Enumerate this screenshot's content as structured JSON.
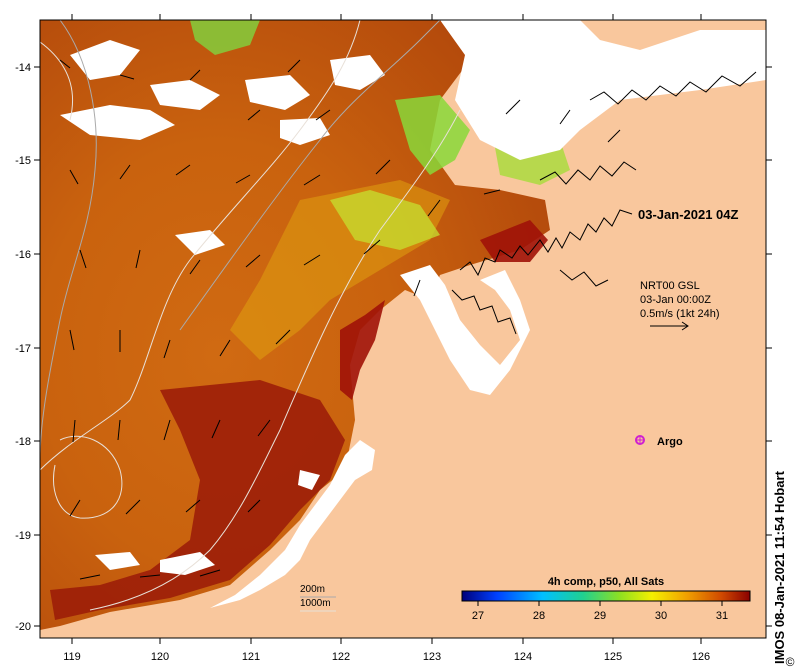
{
  "map": {
    "timestamp": "03-Jan-2021 04Z",
    "current_product": {
      "line1": "NRT00 GSL",
      "line2": "03-Jan 00:00Z",
      "line3": "0.5m/s (1kt 24h)"
    },
    "argo_label": "Argo",
    "contour_legend": {
      "c1": "200m",
      "c2": "1000m"
    },
    "colorbar": {
      "title": "4h comp, p50, All Sats",
      "ticks": [
        "27",
        "28",
        "29",
        "30",
        "31"
      ],
      "min": 26.7,
      "max": 31.5
    },
    "credit": "IMOS 08-Jan-2021 11:54 Hobart",
    "x_ticks": [
      "119",
      "120",
      "121",
      "122",
      "123",
      "124",
      "125",
      "126"
    ],
    "y_ticks": [
      "-14",
      "-15",
      "-16",
      "-17",
      "-18",
      "-19",
      "-20"
    ],
    "colors": {
      "land": "#f9c79d",
      "sst_warm": "#c14a0a",
      "sst_hot": "#9a0d08",
      "sst_cool": "#7fd640",
      "cloud": "#ffffff"
    }
  }
}
